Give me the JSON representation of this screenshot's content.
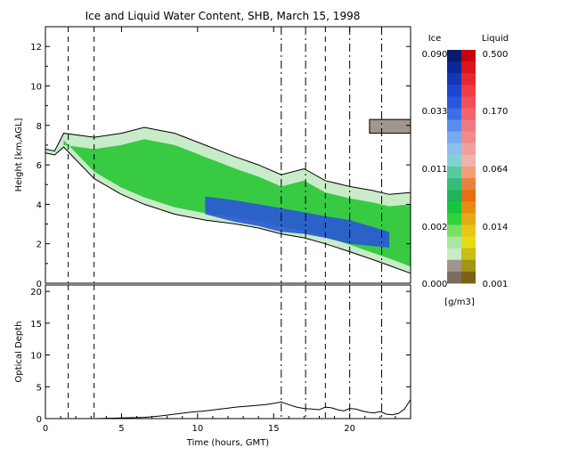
{
  "chart_data": [
    {
      "type": "heatmap",
      "title": "Ice and Liquid Water Content, SHB, March 15, 1998",
      "xlabel": "",
      "ylabel": "Height [km,AGL]",
      "xlim": [
        0,
        24
      ],
      "ylim": [
        0,
        13
      ],
      "y_ticks": [
        "0",
        "2",
        "4",
        "6",
        "8",
        "10",
        "12"
      ],
      "event_lines_x": [
        1.5,
        3.2,
        15.5,
        17.1,
        18.4,
        20.0,
        22.1
      ],
      "cloud_top_km": [
        [
          0.0,
          6.8
        ],
        [
          0.6,
          6.7
        ],
        [
          1.2,
          7.6
        ],
        [
          3.2,
          7.4
        ],
        [
          5.0,
          7.6
        ],
        [
          6.5,
          7.9
        ],
        [
          8.5,
          7.6
        ],
        [
          10.5,
          7.0
        ],
        [
          12.5,
          6.4
        ],
        [
          14.0,
          6.0
        ],
        [
          15.5,
          5.5
        ],
        [
          17.0,
          5.8
        ],
        [
          18.4,
          5.2
        ],
        [
          20.0,
          4.9
        ],
        [
          21.5,
          4.7
        ],
        [
          22.6,
          4.5
        ],
        [
          24.0,
          4.6
        ]
      ],
      "cloud_base_km": [
        [
          0.0,
          6.6
        ],
        [
          0.6,
          6.5
        ],
        [
          1.2,
          6.9
        ],
        [
          3.2,
          5.3
        ],
        [
          5.0,
          4.5
        ],
        [
          6.5,
          4.0
        ],
        [
          8.5,
          3.5
        ],
        [
          10.5,
          3.2
        ],
        [
          12.5,
          3.0
        ],
        [
          14.0,
          2.8
        ],
        [
          15.5,
          2.5
        ],
        [
          17.0,
          2.3
        ],
        [
          18.4,
          2.0
        ],
        [
          20.0,
          1.6
        ],
        [
          21.5,
          1.2
        ],
        [
          22.6,
          0.9
        ],
        [
          24.0,
          0.5
        ]
      ],
      "upper_layer": {
        "x_start": 21.3,
        "x_end": 24.0,
        "top_km": 8.3,
        "base_km": 7.6
      },
      "ice_max_core": [
        [
          10.5,
          4.4,
          3.5
        ],
        [
          12.5,
          4.2,
          3.1
        ],
        [
          14.0,
          4.0,
          2.9
        ],
        [
          15.5,
          3.8,
          2.6
        ],
        [
          17.0,
          3.6,
          2.5
        ],
        [
          18.4,
          3.4,
          2.3
        ],
        [
          20.0,
          3.2,
          2.0
        ],
        [
          22.6,
          2.6,
          1.8
        ]
      ],
      "colorbar": {
        "unit": "[g/m3]",
        "ice_label": "Ice",
        "liquid_label": "Liquid",
        "ice_ticks": [
          "0.090",
          "0.033",
          "0.011",
          "0.002",
          "0.000"
        ],
        "liquid_ticks": [
          "0.500",
          "0.170",
          "0.064",
          "0.014",
          "0.001"
        ],
        "ice_colors": [
          "#0a1a6e",
          "#0a2896",
          "#1438b4",
          "#1e46d2",
          "#2856dc",
          "#3c6ee6",
          "#5a8cf0",
          "#78a8f0",
          "#8cc0ec",
          "#82d2d2",
          "#5ac8a0",
          "#32be78",
          "#1eb45a",
          "#14c83c",
          "#32d23c",
          "#78e164",
          "#aae6a0",
          "#c8ebc8",
          "#a0968c",
          "#786e64"
        ],
        "liquid_colors": [
          "#c8000a",
          "#dc141e",
          "#e62832",
          "#f03c46",
          "#f0505a",
          "#f0646e",
          "#f07882",
          "#f08c8c",
          "#f0a0a0",
          "#f0b4aa",
          "#f0a078",
          "#e6823c",
          "#e66e14",
          "#e68c14",
          "#e6aa14",
          "#e6c814",
          "#e6dc14",
          "#c8be14",
          "#a09614",
          "#786414"
        ]
      }
    },
    {
      "type": "line",
      "title": "",
      "xlabel": "Time (hours, GMT)",
      "ylabel": "Optical Depth",
      "xlim": [
        0,
        24
      ],
      "ylim": [
        0,
        21
      ],
      "x_ticks": [
        "0",
        "5",
        "10",
        "15",
        "20"
      ],
      "y_ticks": [
        "0",
        "5",
        "10",
        "15",
        "20"
      ],
      "event_lines_x": [
        1.5,
        3.2,
        15.5,
        17.1,
        18.4,
        20.0,
        22.1
      ],
      "series": [
        {
          "x": [
            3.2,
            5.0,
            6.5,
            7.5,
            8.5,
            9.5,
            10.5,
            11.5,
            12.5,
            13.5,
            14.5,
            15.0,
            15.5,
            16.0,
            16.5,
            17.0,
            17.5,
            18.0,
            18.4,
            18.8,
            19.2,
            19.6,
            20.0,
            20.4,
            20.8,
            21.2,
            21.6,
            22.0,
            22.4,
            22.8,
            23.2,
            23.6,
            24.0
          ],
          "y": [
            0.0,
            0.1,
            0.2,
            0.4,
            0.7,
            1.0,
            1.2,
            1.5,
            1.8,
            2.0,
            2.2,
            2.4,
            2.6,
            2.2,
            1.8,
            1.6,
            1.5,
            1.4,
            1.8,
            1.7,
            1.4,
            1.2,
            1.6,
            1.5,
            1.2,
            1.0,
            0.9,
            1.1,
            0.7,
            0.6,
            0.8,
            1.5,
            3.0
          ]
        }
      ]
    }
  ]
}
